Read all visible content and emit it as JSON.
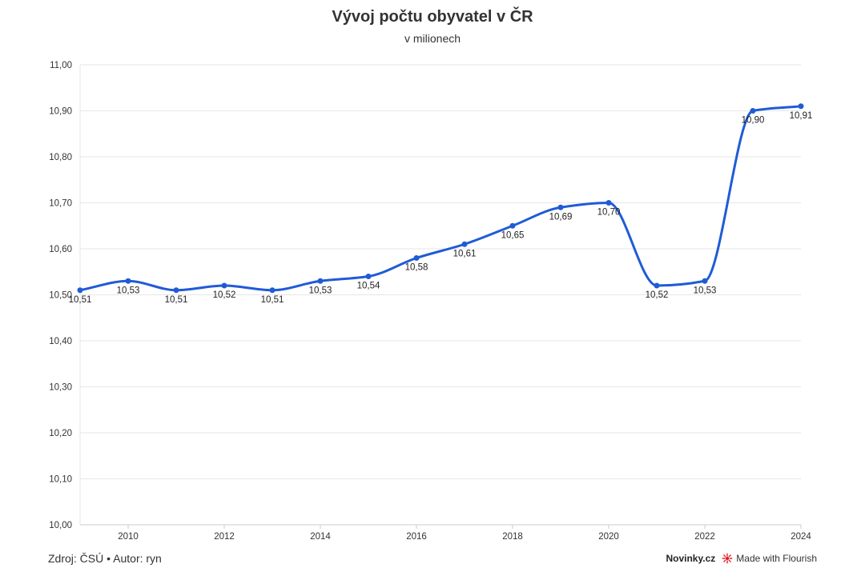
{
  "chart_data": {
    "type": "line",
    "title": "Vývoj počtu obyvatel v ČR",
    "subtitle": "v milionech",
    "xlabel": "",
    "ylabel": "",
    "x": [
      2009,
      2010,
      2011,
      2012,
      2013,
      2014,
      2015,
      2016,
      2017,
      2018,
      2019,
      2020,
      2021,
      2022,
      2023,
      2024
    ],
    "series": [
      {
        "values": [
          10.51,
          10.53,
          10.51,
          10.52,
          10.51,
          10.53,
          10.54,
          10.58,
          10.61,
          10.65,
          10.69,
          10.7,
          10.52,
          10.53,
          10.9,
          10.91
        ],
        "labels": [
          "10,51",
          "10,53",
          "10,51",
          "10,52",
          "10,51",
          "10,53",
          "10,54",
          "10,58",
          "10,61",
          "10,65",
          "10,69",
          "10,70",
          "10,52",
          "10,53",
          "10,90",
          "10,91"
        ],
        "color": "#1f5bd6"
      }
    ],
    "xlim": [
      2009,
      2024
    ],
    "ylim": [
      10.0,
      11.0
    ],
    "x_ticks": [
      "2010",
      "2012",
      "2014",
      "2016",
      "2018",
      "2020",
      "2022",
      "2024"
    ],
    "y_ticks": [
      "10,00",
      "10,10",
      "10,20",
      "10,30",
      "10,40",
      "10,50",
      "10,60",
      "10,70",
      "10,80",
      "10,90",
      "11,00"
    ],
    "grid": true,
    "legend": "none"
  },
  "footer": {
    "source": "Zdroj: ČSÚ • Autor: ryn",
    "publisher": "Novinky.cz",
    "made_with": "Made with Flourish"
  },
  "colors": {
    "line": "#1f5bd6",
    "grid": "#e6e6e6",
    "flourish_icon": "#e0222a"
  },
  "icons": {
    "flourish": "flourish-logo-icon"
  }
}
